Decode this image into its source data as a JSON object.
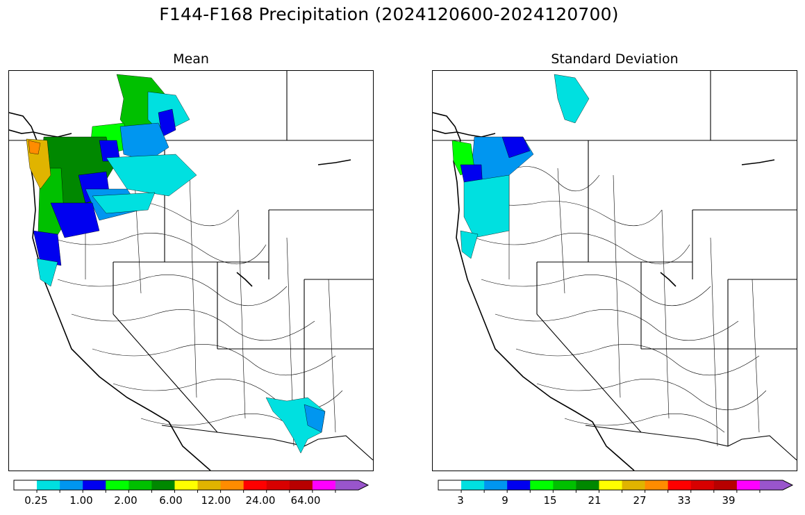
{
  "title": "F144-F168 Precipitation (2024120600-2024120700)",
  "colors": [
    "#ffffff",
    "#00e0e0",
    "#0096f0",
    "#0000f0",
    "#00ff00",
    "#00c000",
    "#008800",
    "#ffff00",
    "#e0b400",
    "#ff8c00",
    "#ff0000",
    "#d80000",
    "#b80000",
    "#ff00ff",
    "#9955cc"
  ],
  "panels": [
    {
      "title": "Standard Deviation"
    }
  ],
  "mean_panel": {
    "title": "Mean",
    "colorbar": {
      "tick_labels": [
        "0.25",
        "1.00",
        "2.00",
        "6.00",
        "12.00",
        "24.00",
        "64.00"
      ]
    }
  },
  "std_panel": {
    "title": "Standard Deviation",
    "colorbar": {
      "tick_labels": [
        "3",
        "9",
        "15",
        "21",
        "27",
        "33",
        "39"
      ]
    }
  }
}
